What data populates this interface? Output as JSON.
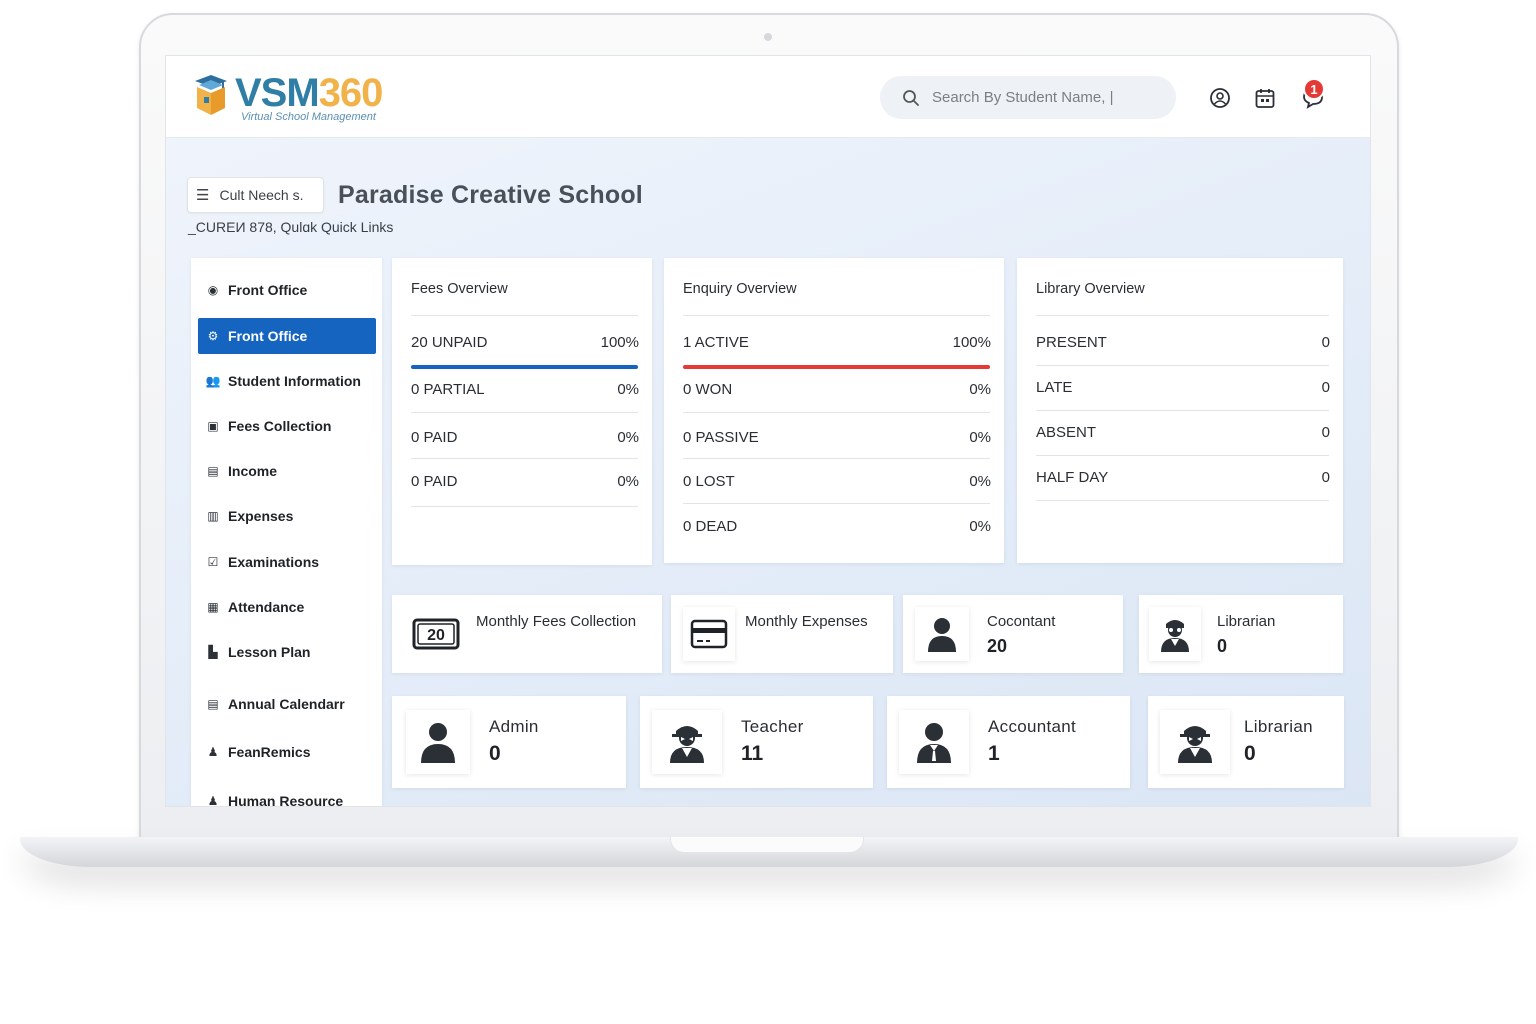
{
  "app": {
    "brand_vsm": "VSM",
    "brand_num": "360",
    "tagline": "Virtual School Management"
  },
  "search": {
    "placeholder": "Search By Student Name, |"
  },
  "notifications": {
    "count": "1"
  },
  "header": {
    "menu_label": "Cult Neech s.",
    "school_name": "Paradise Creative School",
    "quick_links": "_CUREИ 878, Qulɑk Quick Links"
  },
  "sidebar": {
    "items": [
      {
        "label": "Front Office",
        "icon": "front-office-icon"
      },
      {
        "label": "Front Office",
        "icon": "front-office-icon",
        "active": true
      },
      {
        "label": "Student Information",
        "icon": "student-information-icon"
      },
      {
        "label": "Fees Collection",
        "icon": "fees-collection-icon"
      },
      {
        "label": "Income",
        "icon": "income-icon"
      },
      {
        "label": "Expenses",
        "icon": "expenses-icon"
      },
      {
        "label": "Examinations",
        "icon": "examinations-icon"
      },
      {
        "label": "Attendance",
        "icon": "attendance-icon"
      },
      {
        "label": "Lesson Plan",
        "icon": "lesson-plan-icon"
      },
      {
        "label": "Annual Calendarr",
        "icon": "annual-calendar-icon"
      },
      {
        "label": "FeanRemics",
        "icon": "fean-remics-icon"
      },
      {
        "label": "Human Resource",
        "icon": "human-resource-icon"
      }
    ]
  },
  "fees_overview": {
    "title": "Fees Overview",
    "rows": [
      {
        "label": "20 UNPAID",
        "value": "100%"
      },
      {
        "label": "0 PARTIAL",
        "value": "0%"
      },
      {
        "label": "0 PAID",
        "value": "0%"
      },
      {
        "label": "0 PAID",
        "value": "0%"
      }
    ]
  },
  "enquiry_overview": {
    "title": "Enquiry Overview",
    "rows": [
      {
        "label": "1 ACTIVE",
        "value": "100%"
      },
      {
        "label": "0 WON",
        "value": "0%"
      },
      {
        "label": "0 PASSIVE",
        "value": "0%"
      },
      {
        "label": "0 LOST",
        "value": "0%"
      },
      {
        "label": "0 DEAD",
        "value": "0%"
      }
    ]
  },
  "library_overview": {
    "title": "Library Overview",
    "rows": [
      {
        "label": "PRESENT",
        "value": "0"
      },
      {
        "label": "LATE",
        "value": "0"
      },
      {
        "label": "ABSENT",
        "value": "0"
      },
      {
        "label": "HALF DAY",
        "value": "0"
      }
    ]
  },
  "stats_row1": [
    {
      "label": "Monthly Fees Collection",
      "icon": "fees-20-icon",
      "icon_text": "20"
    },
    {
      "label": "Monthly Expenses",
      "icon": "card-icon"
    },
    {
      "label": "Cocontant",
      "value": "20",
      "icon": "person-icon"
    },
    {
      "label": "Librarian",
      "value": "0",
      "icon": "librarian-icon"
    }
  ],
  "stats_row2": [
    {
      "label": "Admin",
      "value": "0",
      "icon": "person-icon"
    },
    {
      "label": "Teacher",
      "value": "11",
      "icon": "teacher-icon"
    },
    {
      "label": "Accountant",
      "value": "1",
      "icon": "accountant-icon"
    },
    {
      "label": "Librarian",
      "value": "0",
      "icon": "librarian-icon"
    }
  ],
  "colors": {
    "primary": "#1565c0",
    "danger": "#e53935",
    "brand_blue": "#2f7ea6",
    "brand_orange": "#f2b24a"
  }
}
